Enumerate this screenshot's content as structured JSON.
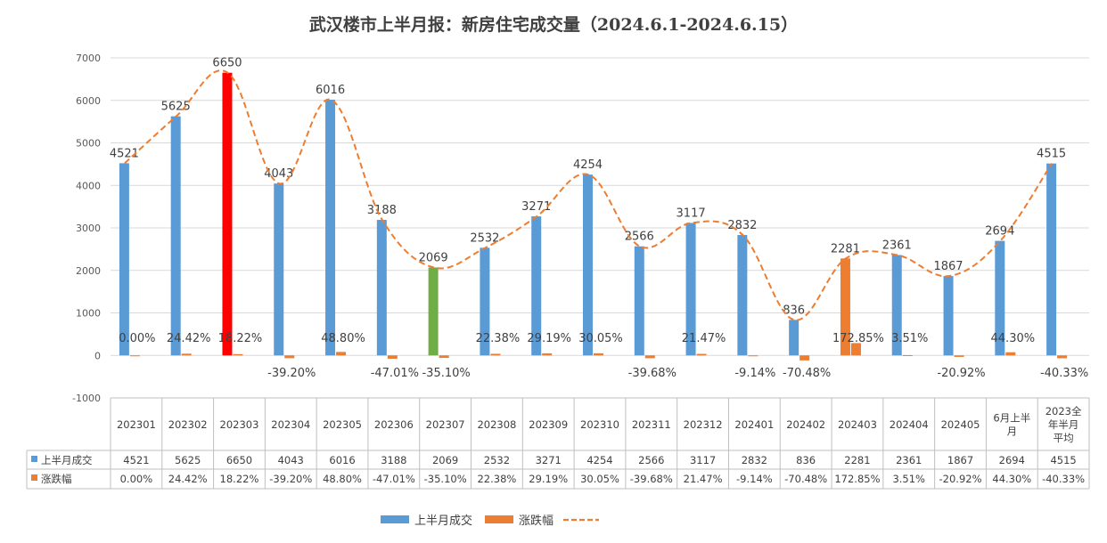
{
  "chart_data": {
    "type": "bar",
    "title": "武汉楼市上半月报：新房住宅成交量（2024.6.1-2024.6.15）",
    "ylim": [
      -1000,
      7000
    ],
    "yticks": [
      "-1000",
      "0",
      "1000",
      "2000",
      "3000",
      "4000",
      "5000",
      "6000",
      "7000"
    ],
    "grid": true,
    "legend_position": "bottom",
    "categories": [
      "202301",
      "202302",
      "202303",
      "202304",
      "202305",
      "202306",
      "202307",
      "202308",
      "202309",
      "202310",
      "202311",
      "202312",
      "202401",
      "202402",
      "202403",
      "202404",
      "202405",
      "6月上半月",
      "2023全年半月平均"
    ],
    "series": [
      {
        "name": "上半月成交",
        "type": "bar",
        "values": [
          4521,
          5625,
          6650,
          4043,
          6016,
          3188,
          2069,
          2532,
          3271,
          4254,
          2566,
          3117,
          2832,
          836,
          2281,
          2361,
          1867,
          2694,
          4515
        ],
        "labels": [
          "4521",
          "5625",
          "6650",
          "4043",
          "6016",
          "3188",
          "2069",
          "2532",
          "3271",
          "4254",
          "2566",
          "3117",
          "2832",
          "836",
          "2281",
          "2361",
          "1867",
          "2694",
          "4515"
        ]
      },
      {
        "name": "涨跌幅",
        "type": "bar",
        "unit": "%",
        "values": [
          0.0,
          24.42,
          18.22,
          -39.2,
          48.8,
          -47.01,
          -35.1,
          22.38,
          29.19,
          30.05,
          -39.68,
          21.47,
          -9.14,
          -70.48,
          172.85,
          3.51,
          -20.92,
          44.3,
          -40.33
        ],
        "labels": [
          "0.00%",
          "24.42%",
          "18.22%",
          "-39.20%",
          "48.80%",
          "-47.01%",
          "-35.10%",
          "22.38%",
          "29.19%",
          "30.05%",
          "-39.68%",
          "21.47%",
          "-9.14%",
          "-70.48%",
          "172.85%",
          "3.51%",
          "-20.92%",
          "44.30%",
          "-40.33%"
        ]
      },
      {
        "name": "",
        "type": "trend-line",
        "style": "dashed"
      }
    ],
    "highlight_colors": {
      "202303": "#ff0000",
      "202307": "#70ad47",
      "202403": "#ed7d31"
    },
    "table_row_labels": [
      "上半月成交",
      "涨跌幅"
    ],
    "category_label_lines": [
      [
        "202301"
      ],
      [
        "202302"
      ],
      [
        "202303"
      ],
      [
        "202304"
      ],
      [
        "202305"
      ],
      [
        "202306"
      ],
      [
        "202307"
      ],
      [
        "202308"
      ],
      [
        "202309"
      ],
      [
        "202310"
      ],
      [
        "202311"
      ],
      [
        "202312"
      ],
      [
        "202401"
      ],
      [
        "202402"
      ],
      [
        "202403"
      ],
      [
        "202404"
      ],
      [
        "202405"
      ],
      [
        "6月上半",
        "月"
      ],
      [
        "2023全",
        "年半月",
        "平均"
      ]
    ]
  },
  "colors": {
    "bar": "#5b9bd5",
    "change": "#ed7d31",
    "trend": "#ed7d31",
    "grid": "#d9d9d9"
  }
}
